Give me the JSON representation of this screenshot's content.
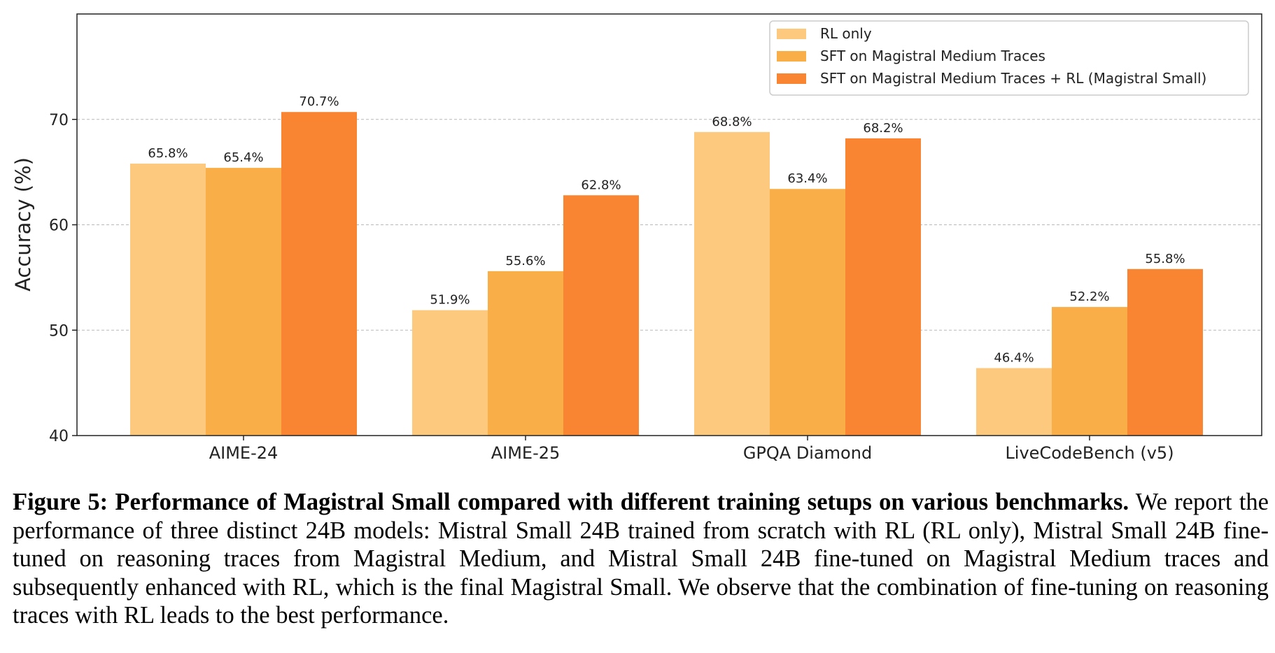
{
  "chart_data": {
    "type": "bar",
    "ylabel": "Accuracy (%)",
    "xlabel": "",
    "ylim": [
      40,
      80
    ],
    "yticks": [
      40,
      50,
      60,
      70
    ],
    "grid": "horizontal dashed",
    "legend_position": "top-right",
    "categories": [
      "AIME-24",
      "AIME-25",
      "GPQA Diamond",
      "LiveCodeBench (v5)"
    ],
    "series": [
      {
        "name": "RL only",
        "color": "#FCC97F",
        "values": [
          65.8,
          51.9,
          68.8,
          46.4
        ],
        "labels": [
          "65.8%",
          "51.9%",
          "68.8%",
          "46.4%"
        ]
      },
      {
        "name": "SFT on Magistral Medium Traces",
        "color": "#FAAE48",
        "values": [
          65.4,
          55.6,
          63.4,
          52.2
        ],
        "labels": [
          "65.4%",
          "55.6%",
          "63.4%",
          "52.2%"
        ]
      },
      {
        "name": "SFT on Magistral Medium Traces + RL (Magistral Small)",
        "color": "#F98532",
        "values": [
          70.7,
          62.8,
          68.2,
          55.8
        ],
        "labels": [
          "70.7%",
          "62.8%",
          "68.2%",
          "55.8%"
        ]
      }
    ]
  },
  "caption": {
    "title": "Figure 5: Performance of Magistral Small compared with different training setups on various benchmarks.",
    "body": "We report the performance of three distinct 24B models: Mistral Small 24B trained from scratch with RL (RL only), Mistral Small 24B fine-tuned on reasoning traces from Magistral Medium, and Mistral Small 24B fine-tuned on Magistral Medium traces and subsequently enhanced with RL, which is the final Magistral Small. We observe that the combination of fine-tuning on reasoning traces with RL leads to the best performance."
  }
}
